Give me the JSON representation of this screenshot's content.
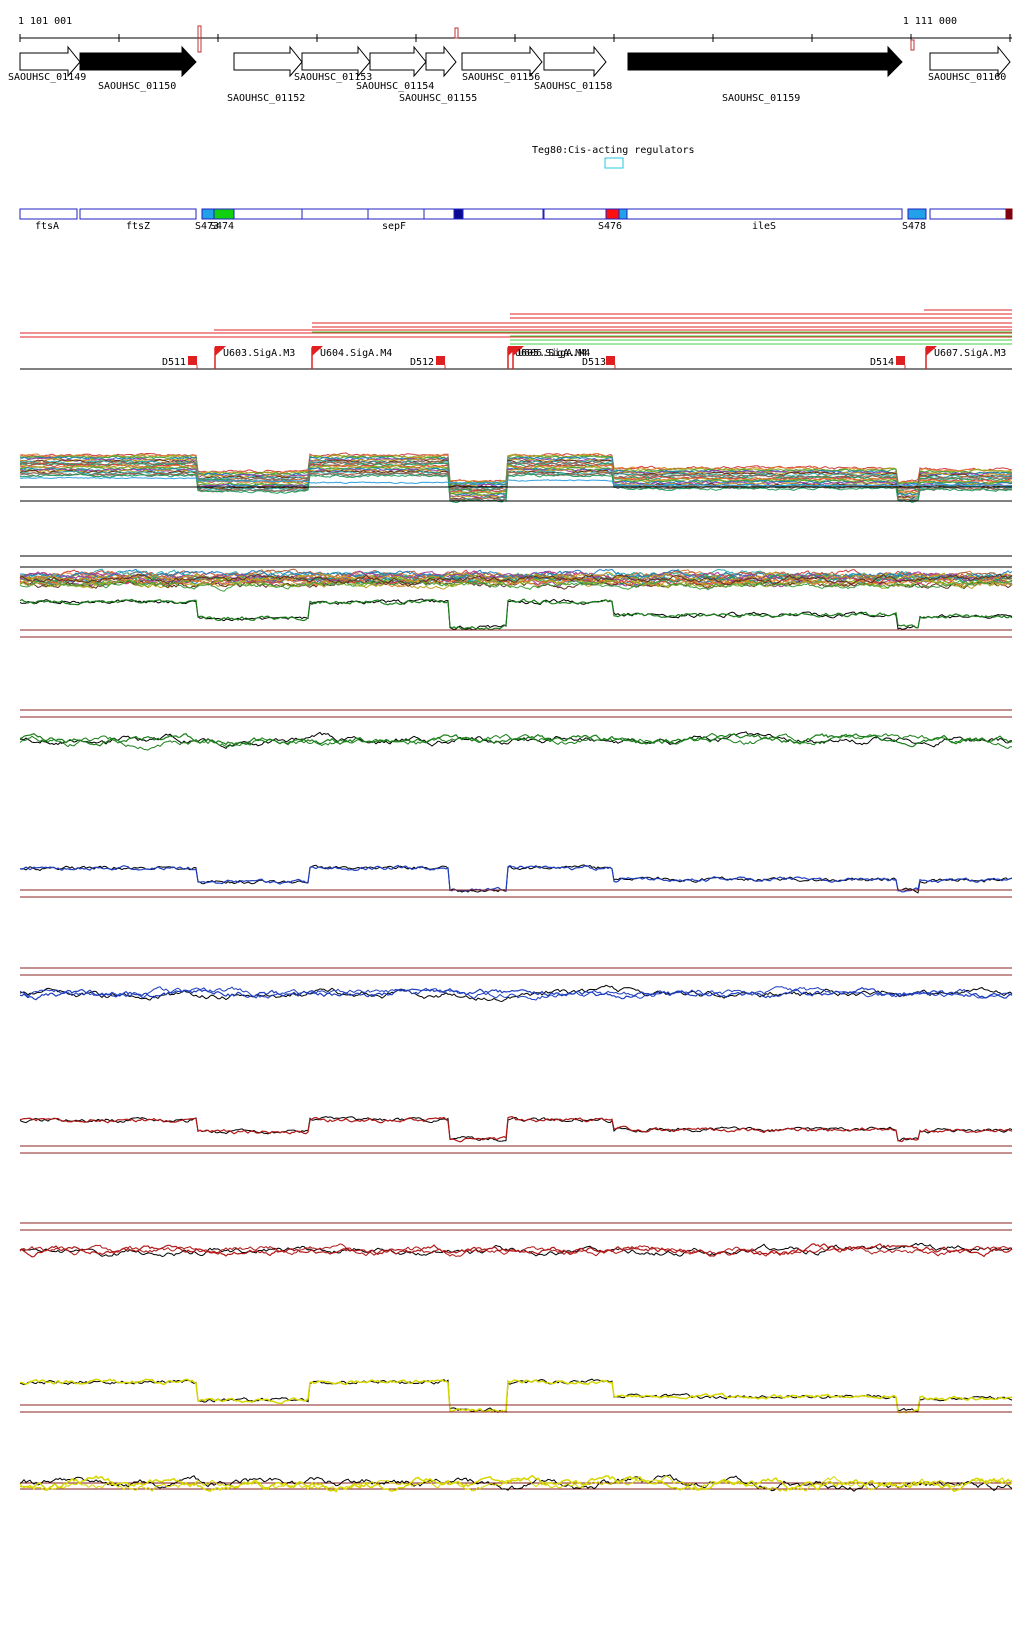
{
  "coordinates": {
    "start_label": "1 101 001",
    "end_label": "1 111 000"
  },
  "genes": [
    {
      "label": "SAOUHSC_01149",
      "filled": false
    },
    {
      "label": "SAOUHSC_01150",
      "filled": true
    },
    {
      "label": "SAOUHSC_01152",
      "filled": false
    },
    {
      "label": "SAOUHSC_01153",
      "filled": false
    },
    {
      "label": "SAOUHSC_01154",
      "filled": false
    },
    {
      "label": "SAOUHSC_01155",
      "filled": false
    },
    {
      "label": "SAOUHSC_01156",
      "filled": false
    },
    {
      "label": "SAOUHSC_01158",
      "filled": false
    },
    {
      "label": "SAOUHSC_01159",
      "filled": true
    },
    {
      "label": "SAOUHSC_01160",
      "filled": false
    }
  ],
  "regulator": {
    "label": "Teg80:Cis-acting regulators"
  },
  "segment_labels": [
    "ftsA",
    "ftsZ",
    "S473",
    "S474",
    "sepF",
    "S476",
    "ileS",
    "S478"
  ],
  "promoters": [
    "U603.SigA.M3",
    "U604.SigA.M4",
    "U605.SigA.M4",
    "U606.SigA.M4",
    "U607.SigA.M3"
  ],
  "terminators": [
    "D511",
    "D512",
    "D513",
    "D514"
  ],
  "track_colors": {
    "green": "#1a7f1a",
    "blue": "#1f3fbf",
    "red": "#b01818",
    "yellow": "#d6d600",
    "black": "#000000",
    "threshold": "#8b2020"
  }
}
